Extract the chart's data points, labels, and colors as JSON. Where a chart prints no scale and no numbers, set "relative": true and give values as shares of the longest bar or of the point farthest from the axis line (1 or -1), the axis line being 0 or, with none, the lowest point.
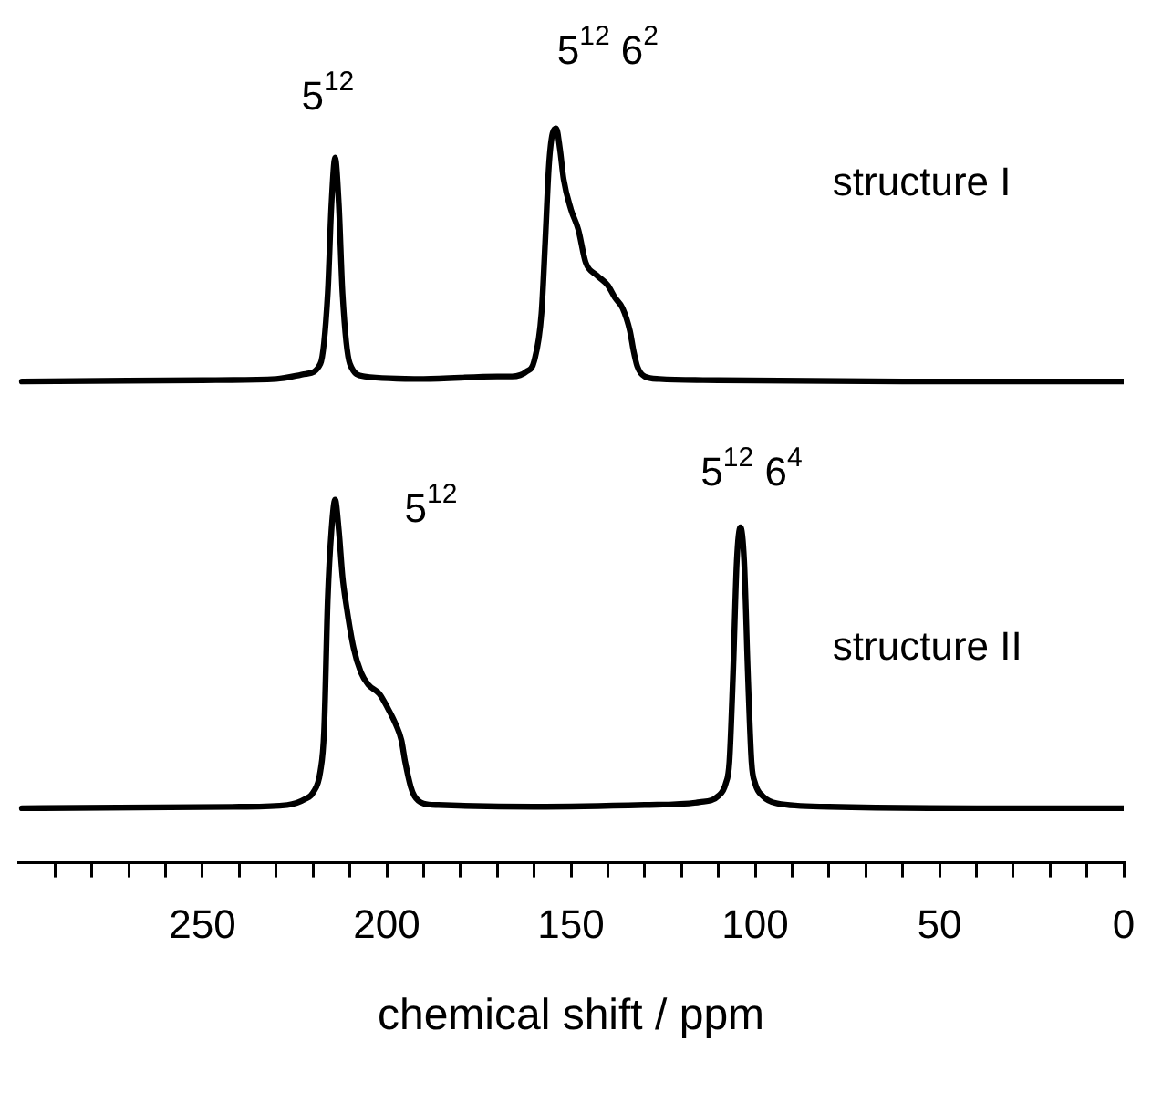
{
  "chart_data": [
    {
      "type": "line",
      "relative": true,
      "xlim": [
        300,
        0
      ],
      "tick_labels": false,
      "grid": false,
      "legend": false,
      "marker": "none",
      "line_style": "solid",
      "series": [
        {
          "color": "#000000",
          "x": [
            299,
            250,
            230,
            222,
            218,
            216,
            215,
            214,
            213,
            212,
            210,
            206,
            190,
            170,
            166,
            162,
            160,
            158,
            157,
            156,
            155,
            154,
            153,
            152,
            150,
            148,
            146,
            143,
            140,
            138,
            136,
            134,
            133,
            132,
            130,
            126,
            110,
            60,
            0
          ],
          "values": [
            0,
            0.005,
            0.01,
            0.03,
            0.07,
            0.35,
            0.7,
            0.885,
            0.7,
            0.35,
            0.07,
            0.02,
            0.01,
            0.02,
            0.02,
            0.04,
            0.08,
            0.27,
            0.55,
            0.85,
            0.98,
            1,
            0.92,
            0.8,
            0.68,
            0.6,
            0.47,
            0.42,
            0.38,
            0.33,
            0.29,
            0.2,
            0.12,
            0.06,
            0.02,
            0.01,
            0.005,
            0,
            0
          ]
        }
      ],
      "annotations": [
        "5$^{12}$",
        "5$^{12}$ 6$^{2}$",
        "structure I"
      ]
    },
    {
      "type": "line",
      "relative": true,
      "xlim": [
        300,
        0
      ],
      "xlabel": "chemical shift / ppm",
      "tick_labels": "x",
      "grid": false,
      "legend": false,
      "marker": "none",
      "line_style": "solid",
      "xticks": [
        {
          "value": 290,
          "label": null
        },
        {
          "value": 280,
          "label": null
        },
        {
          "value": 270,
          "label": null
        },
        {
          "value": 260,
          "label": null
        },
        250,
        {
          "value": 240,
          "label": null
        },
        {
          "value": 230,
          "label": null
        },
        {
          "value": 220,
          "label": null
        },
        {
          "value": 210,
          "label": null
        },
        200,
        {
          "value": 190,
          "label": null
        },
        {
          "value": 180,
          "label": null
        },
        {
          "value": 170,
          "label": null
        },
        {
          "value": 160,
          "label": null
        },
        150,
        {
          "value": 140,
          "label": null
        },
        {
          "value": 130,
          "label": null
        },
        {
          "value": 120,
          "label": null
        },
        {
          "value": 110,
          "label": null
        },
        100,
        {
          "value": 90,
          "label": null
        },
        {
          "value": 80,
          "label": null
        },
        {
          "value": 70,
          "label": null
        },
        {
          "value": 60,
          "label": null
        },
        50,
        {
          "value": 40,
          "label": null
        },
        {
          "value": 30,
          "label": null
        },
        {
          "value": 20,
          "label": null
        },
        {
          "value": 10,
          "label": null
        },
        0
      ],
      "series": [
        {
          "color": "#000000",
          "x": [
            299,
            240,
            227,
            222,
            220,
            218,
            217,
            216,
            215,
            214,
            213,
            212,
            211,
            209,
            207,
            205,
            202,
            200,
            197.5,
            196,
            195,
            193.5,
            192.5,
            190,
            186,
            160,
            130,
            115,
            110,
            108,
            107,
            106,
            105,
            104,
            103,
            102,
            101,
            100,
            98,
            94,
            80,
            40,
            0
          ],
          "values": [
            0.15,
            0.154,
            0.159,
            0.176,
            0.193,
            0.252,
            0.363,
            0.728,
            0.915,
            1,
            0.915,
            0.788,
            0.711,
            0.592,
            0.524,
            0.49,
            0.465,
            0.431,
            0.38,
            0.337,
            0.278,
            0.21,
            0.184,
            0.163,
            0.159,
            0.154,
            0.159,
            0.167,
            0.184,
            0.218,
            0.278,
            0.524,
            0.83,
            0.924,
            0.83,
            0.524,
            0.278,
            0.218,
            0.184,
            0.163,
            0.154,
            0.15,
            0.15
          ]
        }
      ],
      "annotations": [
        "5$^{12}$",
        "5$^{12}$ 6$^{4}$",
        "structure II"
      ]
    }
  ]
}
